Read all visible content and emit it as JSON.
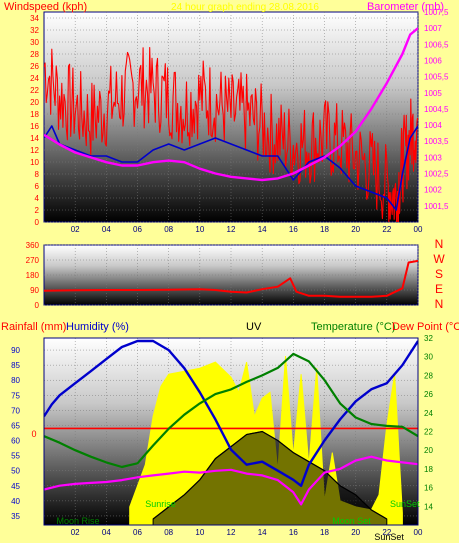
{
  "page": {
    "background": "#ffff99"
  },
  "chart_data": [
    {
      "id": "wind_baro",
      "type": "line",
      "title": "",
      "header_center": "24 hour graph ending 28.08.2016",
      "ylabel_left": "Windspeed (kph)",
      "ylabel_right": "Barometer (mb)",
      "colors": {
        "label_left": "#ff0000",
        "label_right": "#ff00ff",
        "axis_left": "#ff0000",
        "axis_right": "#ff00ff",
        "x_ticks": "#000080"
      },
      "x_ticks": [
        "02",
        "04",
        "06",
        "08",
        "10",
        "12",
        "14",
        "16",
        "18",
        "20",
        "22",
        "00"
      ],
      "x_range": [
        0,
        24
      ],
      "ylim_left": [
        0,
        35
      ],
      "ylim_right": [
        1001,
        1007.5
      ],
      "yticks_left": [
        "0",
        "2",
        "4",
        "6",
        "8",
        "10",
        "12",
        "14",
        "16",
        "18",
        "20",
        "22",
        "24",
        "26",
        "28",
        "30",
        "32",
        "34"
      ],
      "yticks_right": [
        "1001,5",
        "1002",
        "1002,5",
        "1003",
        "1003,5",
        "1004",
        "1004,5",
        "1005",
        "1005,5",
        "1006",
        "1006,5",
        "1007",
        "1007,5"
      ],
      "series": [
        {
          "key": "wind_gust",
          "color": "#ff0000",
          "points": [
            [
              0,
              26
            ],
            [
              1,
              21
            ],
            [
              2,
              19
            ],
            [
              3,
              17
            ],
            [
              4,
              19
            ],
            [
              5,
              21
            ],
            [
              6,
              23
            ],
            [
              7,
              22
            ],
            [
              8,
              21
            ],
            [
              9,
              19
            ],
            [
              10,
              21
            ],
            [
              11,
              20
            ],
            [
              12,
              18
            ],
            [
              13,
              18
            ],
            [
              14,
              16
            ],
            [
              15,
              14
            ],
            [
              16,
              13
            ],
            [
              17,
              13
            ],
            [
              18,
              14
            ],
            [
              19,
              13
            ],
            [
              20,
              11
            ],
            [
              21,
              9
            ],
            [
              22,
              6
            ],
            [
              22.6,
              4
            ],
            [
              23,
              10
            ],
            [
              23.5,
              14
            ],
            [
              24,
              17
            ]
          ]
        },
        {
          "key": "wind_avg",
          "color": "#0000cc",
          "points": [
            [
              0,
              14
            ],
            [
              0.5,
              16
            ],
            [
              1,
              13
            ],
            [
              2,
              12
            ],
            [
              3,
              11
            ],
            [
              4,
              11
            ],
            [
              5,
              10
            ],
            [
              6,
              10
            ],
            [
              7,
              12
            ],
            [
              8,
              13
            ],
            [
              9,
              12
            ],
            [
              10,
              13
            ],
            [
              11,
              14
            ],
            [
              12,
              13
            ],
            [
              13,
              12
            ],
            [
              14,
              11
            ],
            [
              15,
              11
            ],
            [
              16,
              7
            ],
            [
              17,
              10
            ],
            [
              18,
              11
            ],
            [
              19,
              9
            ],
            [
              20,
              6
            ],
            [
              21,
              5
            ],
            [
              22,
              4
            ],
            [
              22.6,
              2
            ],
            [
              23,
              8
            ],
            [
              23.5,
              14
            ],
            [
              24,
              16
            ]
          ]
        },
        {
          "key": "barometer",
          "color": "#ff00ff",
          "axis": "right",
          "points": [
            [
              0,
              1003.7
            ],
            [
              1,
              1003.4
            ],
            [
              2,
              1003.15
            ],
            [
              3,
              1003.0
            ],
            [
              4,
              1002.85
            ],
            [
              5,
              1002.75
            ],
            [
              6,
              1002.75
            ],
            [
              7,
              1002.85
            ],
            [
              8,
              1002.9
            ],
            [
              9,
              1002.85
            ],
            [
              10,
              1002.65
            ],
            [
              11,
              1002.5
            ],
            [
              12,
              1002.4
            ],
            [
              13,
              1002.35
            ],
            [
              14,
              1002.3
            ],
            [
              15,
              1002.35
            ],
            [
              16,
              1002.5
            ],
            [
              17,
              1002.75
            ],
            [
              18,
              1003.0
            ],
            [
              19,
              1003.35
            ],
            [
              20,
              1003.8
            ],
            [
              21,
              1004.5
            ],
            [
              22,
              1005.3
            ],
            [
              23,
              1006.2
            ],
            [
              23.5,
              1006.8
            ],
            [
              24,
              1007.0
            ]
          ]
        }
      ]
    },
    {
      "id": "wind_dir",
      "type": "line",
      "title": "",
      "x_ticks": [],
      "x_range": [
        0,
        24
      ],
      "ylim": [
        0,
        360
      ],
      "yticks": [
        "0",
        "90",
        "180",
        "270",
        "360"
      ],
      "compass": [
        "N",
        "W",
        "S",
        "E",
        "N"
      ],
      "colors": {
        "axis_left": "#ff0000",
        "compass": "#ff0000"
      },
      "series": [
        {
          "key": "direction",
          "color": "#ff0000",
          "points": [
            [
              0,
              85
            ],
            [
              2,
              88
            ],
            [
              4,
              90
            ],
            [
              6,
              90
            ],
            [
              8,
              92
            ],
            [
              10,
              95
            ],
            [
              11,
              90
            ],
            [
              12,
              80
            ],
            [
              13,
              75
            ],
            [
              14,
              95
            ],
            [
              15,
              110
            ],
            [
              15.8,
              160
            ],
            [
              16.2,
              80
            ],
            [
              17,
              55
            ],
            [
              18,
              55
            ],
            [
              19,
              50
            ],
            [
              20,
              50
            ],
            [
              21,
              50
            ],
            [
              22,
              55
            ],
            [
              23,
              100
            ],
            [
              23.4,
              255
            ],
            [
              24,
              265
            ]
          ]
        }
      ]
    },
    {
      "id": "rain_hum_uv_temp",
      "type": "line",
      "title": "",
      "labels": {
        "rainfall": "Rainfall (mm)",
        "humidity": "Humidity (%)",
        "uv": "UV",
        "temperature": "Temperature (°C)",
        "dewpoint": "Dew Point (°C"
      },
      "colors": {
        "rainfall": "#ff0000",
        "humidity": "#0000cc",
        "uv": "#000000",
        "temperature": "#008000",
        "dewpoint": "#ff0000",
        "axis_left": "#0000cc",
        "axis_right": "#008000"
      },
      "x_ticks": [
        "02",
        "04",
        "06",
        "08",
        "10",
        "12",
        "14",
        "16",
        "18",
        "20",
        "22",
        "00"
      ],
      "x_range": [
        0,
        24
      ],
      "ylim_left": [
        32,
        94
      ],
      "ylim_right": [
        12,
        32
      ],
      "yticks_left": [
        "35",
        "40",
        "45",
        "50",
        "55",
        "60",
        "65",
        "70",
        "75",
        "80",
        "85",
        "90"
      ],
      "yticks_right": [
        "14",
        "16",
        "18",
        "20",
        "22",
        "24",
        "26",
        "28",
        "30",
        "32"
      ],
      "rain_label": "0",
      "rain_value": 0,
      "annotations": [
        {
          "text": "Moon Rise",
          "x": 0.8,
          "color": "#008000"
        },
        {
          "text": "Sunrise",
          "x": 6.5,
          "color": "#00cc00"
        },
        {
          "text": "Moon Set",
          "x": 18.5,
          "color": "#00cc00"
        },
        {
          "text": "SunSet",
          "x": 22.2,
          "color": "#00cc00"
        },
        {
          "text": "SunSet",
          "x": 21.2,
          "color": "#000000"
        }
      ],
      "series": [
        {
          "key": "humidity",
          "color": "#0000cc",
          "axis": "left",
          "points": [
            [
              0,
              68
            ],
            [
              0.5,
              72
            ],
            [
              1,
              75
            ],
            [
              2,
              79
            ],
            [
              3,
              83
            ],
            [
              4,
              87
            ],
            [
              5,
              91
            ],
            [
              6,
              93
            ],
            [
              7,
              93
            ],
            [
              8,
              90
            ],
            [
              9,
              84
            ],
            [
              10,
              76
            ],
            [
              11,
              67
            ],
            [
              12,
              57
            ],
            [
              13,
              52
            ],
            [
              14,
              53
            ],
            [
              15,
              50
            ],
            [
              16,
              47
            ],
            [
              16.5,
              45
            ],
            [
              17,
              52
            ],
            [
              18,
              60
            ],
            [
              19,
              67
            ],
            [
              20,
              73
            ],
            [
              21,
              77
            ],
            [
              22,
              79
            ],
            [
              23,
              85
            ],
            [
              24,
              93
            ]
          ]
        },
        {
          "key": "temperature",
          "color": "#008000",
          "axis": "right",
          "points": [
            [
              0,
              21.5
            ],
            [
              1,
              20.8
            ],
            [
              2,
              20.0
            ],
            [
              3,
              19.3
            ],
            [
              4,
              18.7
            ],
            [
              5,
              18.2
            ],
            [
              6,
              18.6
            ],
            [
              7,
              20.5
            ],
            [
              8,
              22.3
            ],
            [
              9,
              23.8
            ],
            [
              10,
              25.0
            ],
            [
              11,
              26.0
            ],
            [
              12,
              26.5
            ],
            [
              13,
              27.3
            ],
            [
              14,
              28.0
            ],
            [
              15,
              28.8
            ],
            [
              16,
              30.3
            ],
            [
              17,
              29.5
            ],
            [
              18,
              27.5
            ],
            [
              19,
              25.0
            ],
            [
              20,
              23.5
            ],
            [
              21,
              22.8
            ],
            [
              22,
              22.6
            ],
            [
              23,
              22.5
            ],
            [
              24,
              21.5
            ]
          ]
        },
        {
          "key": "dewpoint",
          "color": "#ff00ff",
          "axis": "right",
          "points": [
            [
              0,
              15.8
            ],
            [
              1,
              16.2
            ],
            [
              2,
              16.4
            ],
            [
              3,
              16.5
            ],
            [
              4,
              16.6
            ],
            [
              5,
              16.8
            ],
            [
              6,
              17.1
            ],
            [
              7,
              17.3
            ],
            [
              8,
              17.5
            ],
            [
              9,
              17.7
            ],
            [
              10,
              17.6
            ],
            [
              11,
              17.8
            ],
            [
              12,
              17.9
            ],
            [
              13,
              17.5
            ],
            [
              14,
              17.3
            ],
            [
              15,
              16.8
            ],
            [
              16,
              15.5
            ],
            [
              16.5,
              14.2
            ],
            [
              17,
              15.8
            ],
            [
              18,
              17.6
            ],
            [
              19,
              18.0
            ],
            [
              20,
              18.9
            ],
            [
              21,
              19.3
            ],
            [
              22,
              18.9
            ],
            [
              23,
              18.7
            ],
            [
              24,
              18.5
            ]
          ]
        },
        {
          "key": "solar",
          "color": "#ffff00",
          "axis": "left",
          "fill": true,
          "points": [
            [
              5.5,
              38
            ],
            [
              6,
              45
            ],
            [
              6.5,
              52
            ],
            [
              7,
              68
            ],
            [
              7.5,
              78
            ],
            [
              8,
              82
            ],
            [
              9,
              83
            ],
            [
              10,
              84
            ],
            [
              11,
              86
            ],
            [
              12,
              81
            ],
            [
              12.5,
              76
            ],
            [
              13,
              86
            ],
            [
              13.5,
              68
            ],
            [
              14,
              74
            ],
            [
              14.5,
              76
            ],
            [
              15,
              50
            ],
            [
              15.5,
              88
            ],
            [
              16,
              55
            ],
            [
              16.5,
              82
            ],
            [
              17,
              52
            ],
            [
              17.5,
              84
            ],
            [
              18,
              40
            ],
            [
              18.5,
              56
            ],
            [
              19,
              40
            ],
            [
              20,
              38
            ],
            [
              21,
              37
            ],
            [
              21.5,
              42
            ],
            [
              22,
              65
            ],
            [
              22.5,
              82
            ],
            [
              23,
              36
            ]
          ]
        },
        {
          "key": "uv",
          "color": "#000000",
          "axis": "left",
          "fill": true,
          "points": [
            [
              7,
              34
            ],
            [
              8,
              38
            ],
            [
              9,
              42
            ],
            [
              10,
              47
            ],
            [
              11,
              54
            ],
            [
              12,
              58
            ],
            [
              13,
              62
            ],
            [
              14,
              63
            ],
            [
              15,
              60
            ],
            [
              16,
              56
            ],
            [
              17,
              53
            ],
            [
              18,
              50
            ],
            [
              19,
              45
            ],
            [
              20,
              42
            ],
            [
              21,
              37
            ],
            [
              22,
              34
            ]
          ]
        }
      ]
    }
  ]
}
